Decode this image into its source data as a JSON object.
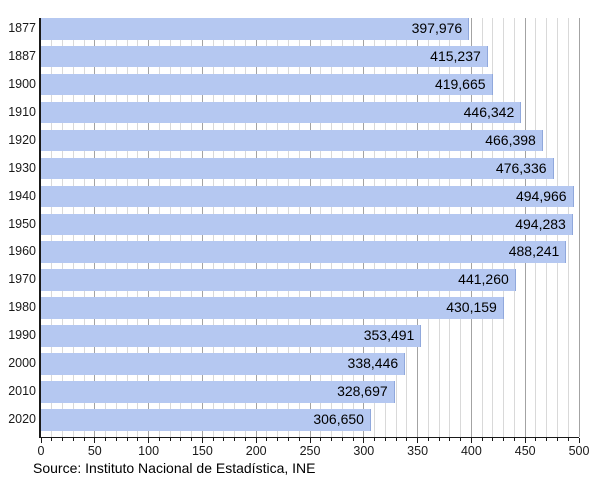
{
  "chart_data": {
    "type": "bar",
    "orientation": "horizontal",
    "categories": [
      "1877",
      "1887",
      "1900",
      "1910",
      "1920",
      "1930",
      "1940",
      "1950",
      "1960",
      "1970",
      "1980",
      "1990",
      "2000",
      "2010",
      "2020"
    ],
    "values": [
      397976,
      415237,
      419665,
      446342,
      466398,
      476336,
      494966,
      494283,
      488241,
      441260,
      430159,
      353491,
      338446,
      328697,
      306650
    ],
    "value_labels": [
      "397,976",
      "415,237",
      "419,665",
      "446,342",
      "466,398",
      "476,336",
      "494,966",
      "494,283",
      "488,241",
      "441,260",
      "430,159",
      "353,491",
      "338,446",
      "328,697",
      "306,650"
    ],
    "xlim": [
      0,
      500
    ],
    "x_ticks": [
      0,
      50,
      100,
      150,
      200,
      250,
      300,
      350,
      400,
      450,
      500
    ],
    "x_minor_step": 10,
    "axis_unit": 1000,
    "grid": "vertical-minor-and-major",
    "legend": "none",
    "bar_color": "#b5c8f1",
    "bar_edge_color": "#90a8dc",
    "minor_grid_color": "#d9d9d9",
    "major_grid_color": "#a3a3a3",
    "axis_color": "#1a1a1a"
  },
  "source": "Source: Instituto Nacional de Estadística, INE"
}
